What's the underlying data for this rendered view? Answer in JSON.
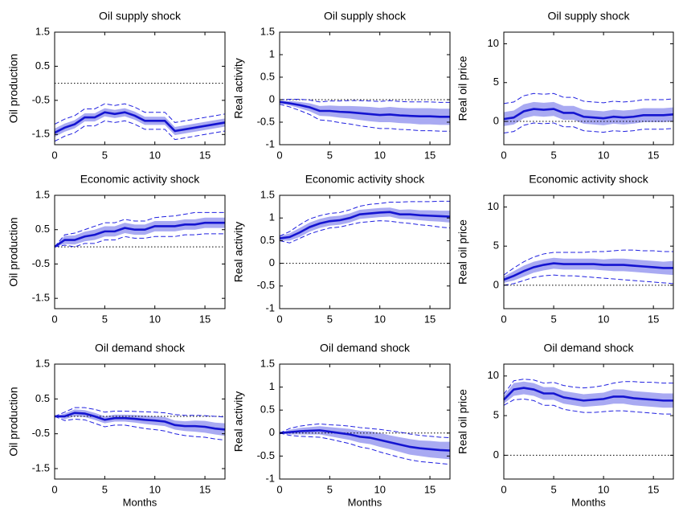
{
  "chart_data": [
    {
      "type": "line",
      "title": "Oil supply shock",
      "ylabel": "Oil production",
      "x": [
        0,
        1,
        2,
        3,
        4,
        5,
        6,
        7,
        8,
        9,
        10,
        11,
        12,
        13,
        14,
        15,
        16,
        17
      ],
      "xlim": [
        0,
        17
      ],
      "xticks": [
        0,
        5,
        10,
        15
      ],
      "ylim": [
        -1.8,
        1.5
      ],
      "yticks": [
        -1.5,
        -0.5,
        0.5,
        1.5
      ],
      "hline": 0,
      "color": "#1414d0",
      "band_color": "#a9aaf2",
      "ci_color": "#2020e0",
      "values": [
        -1.45,
        -1.3,
        -1.2,
        -1.0,
        -1.0,
        -0.85,
        -0.9,
        -0.85,
        -0.95,
        -1.1,
        -1.1,
        -1.1,
        -1.4,
        -1.35,
        -1.3,
        -1.25,
        -1.2,
        -1.15
      ],
      "band_lower": [
        -1.57,
        -1.42,
        -1.32,
        -1.12,
        -1.12,
        -0.97,
        -1.02,
        -0.97,
        -1.07,
        -1.22,
        -1.22,
        -1.22,
        -1.52,
        -1.47,
        -1.42,
        -1.37,
        -1.32,
        -1.27
      ],
      "band_upper": [
        -1.33,
        -1.18,
        -1.08,
        -0.88,
        -0.88,
        -0.73,
        -0.78,
        -0.73,
        -0.83,
        -0.98,
        -0.98,
        -0.98,
        -1.28,
        -1.23,
        -1.18,
        -1.13,
        -1.08,
        -1.03
      ],
      "ci_lower": [
        -1.7,
        -1.55,
        -1.45,
        -1.25,
        -1.25,
        -1.1,
        -1.15,
        -1.1,
        -1.2,
        -1.35,
        -1.35,
        -1.35,
        -1.65,
        -1.6,
        -1.55,
        -1.5,
        -1.45,
        -1.4
      ],
      "ci_upper": [
        -1.2,
        -1.05,
        -0.95,
        -0.75,
        -0.75,
        -0.6,
        -0.65,
        -0.6,
        -0.7,
        -0.85,
        -0.85,
        -0.85,
        -1.15,
        -1.1,
        -1.05,
        -1.0,
        -0.95,
        -0.9
      ]
    },
    {
      "type": "line",
      "title": "Oil supply shock",
      "ylabel": "Real activity",
      "x": [
        0,
        1,
        2,
        3,
        4,
        5,
        6,
        7,
        8,
        9,
        10,
        11,
        12,
        13,
        14,
        15,
        16,
        17
      ],
      "xlim": [
        0,
        17
      ],
      "xticks": [
        0,
        5,
        10,
        15
      ],
      "ylim": [
        -1,
        1.5
      ],
      "yticks": [
        -1,
        -0.5,
        0,
        0.5,
        1,
        1.5
      ],
      "hline": 0,
      "color": "#1414d0",
      "band_color": "#a9aaf2",
      "ci_color": "#2020e0",
      "values": [
        -0.05,
        -0.08,
        -0.12,
        -0.17,
        -0.25,
        -0.25,
        -0.27,
        -0.28,
        -0.3,
        -0.32,
        -0.34,
        -0.33,
        -0.35,
        -0.36,
        -0.37,
        -0.37,
        -0.38,
        -0.38
      ],
      "band_lower": [
        -0.08,
        -0.13,
        -0.19,
        -0.26,
        -0.36,
        -0.37,
        -0.4,
        -0.42,
        -0.45,
        -0.48,
        -0.5,
        -0.5,
        -0.52,
        -0.53,
        -0.55,
        -0.55,
        -0.56,
        -0.56
      ],
      "band_upper": [
        -0.02,
        -0.03,
        -0.05,
        -0.08,
        -0.14,
        -0.13,
        -0.14,
        -0.14,
        -0.15,
        -0.16,
        -0.18,
        -0.16,
        -0.18,
        -0.19,
        -0.19,
        -0.19,
        -0.2,
        -0.2
      ],
      "ci_lower": [
        -0.1,
        -0.16,
        -0.24,
        -0.33,
        -0.45,
        -0.47,
        -0.51,
        -0.54,
        -0.58,
        -0.61,
        -0.64,
        -0.64,
        -0.66,
        -0.67,
        -0.69,
        -0.69,
        -0.7,
        -0.7
      ],
      "ci_upper": [
        0,
        0.01,
        0.01,
        -0.01,
        -0.05,
        -0.03,
        -0.03,
        -0.02,
        -0.02,
        -0.03,
        -0.04,
        -0.02,
        -0.04,
        -0.05,
        -0.05,
        -0.05,
        -0.06,
        -0.06
      ]
    },
    {
      "type": "line",
      "title": "Oil supply shock",
      "ylabel": "Real oil price",
      "x": [
        0,
        1,
        2,
        3,
        4,
        5,
        6,
        7,
        8,
        9,
        10,
        11,
        12,
        13,
        14,
        15,
        16,
        17
      ],
      "xlim": [
        0,
        17
      ],
      "xticks": [
        0,
        5,
        10,
        15
      ],
      "ylim": [
        -3,
        11.5
      ],
      "yticks": [
        0,
        5,
        10
      ],
      "hline": 0,
      "color": "#1414d0",
      "band_color": "#a9aaf2",
      "ci_color": "#2020e0",
      "values": [
        0.3,
        0.5,
        1.3,
        1.6,
        1.5,
        1.6,
        1.1,
        1.1,
        0.6,
        0.5,
        0.4,
        0.6,
        0.5,
        0.6,
        0.8,
        0.8,
        0.8,
        0.9
      ],
      "band_lower": [
        -0.6,
        -0.4,
        0.4,
        0.7,
        0.6,
        0.7,
        0.2,
        0.2,
        -0.3,
        -0.4,
        -0.5,
        -0.3,
        -0.4,
        -0.3,
        -0.1,
        -0.1,
        -0.1,
        0
      ],
      "band_upper": [
        1.2,
        1.4,
        2.2,
        2.5,
        2.4,
        2.5,
        2.0,
        2.0,
        1.5,
        1.4,
        1.3,
        1.5,
        1.4,
        1.5,
        1.7,
        1.7,
        1.7,
        1.8
      ],
      "ci_lower": [
        -1.5,
        -1.3,
        -0.5,
        -0.2,
        -0.3,
        -0.2,
        -0.7,
        -0.7,
        -1.2,
        -1.3,
        -1.4,
        -1.2,
        -1.3,
        -1.2,
        -1.0,
        -1.0,
        -1.0,
        -0.9
      ],
      "ci_upper": [
        2.3,
        2.5,
        3.3,
        3.6,
        3.5,
        3.6,
        3.1,
        3.1,
        2.6,
        2.5,
        2.4,
        2.6,
        2.5,
        2.6,
        2.8,
        2.8,
        2.8,
        2.9
      ]
    },
    {
      "type": "line",
      "title": "Economic activity shock",
      "ylabel": "Oil production",
      "x": [
        0,
        1,
        2,
        3,
        4,
        5,
        6,
        7,
        8,
        9,
        10,
        11,
        12,
        13,
        14,
        15,
        16,
        17
      ],
      "xlim": [
        0,
        17
      ],
      "xticks": [
        0,
        5,
        10,
        15
      ],
      "ylim": [
        -1.8,
        1.5
      ],
      "yticks": [
        -1.5,
        -0.5,
        0.5,
        1.5
      ],
      "hline": 0,
      "color": "#1414d0",
      "band_color": "#a9aaf2",
      "ci_color": "#2020e0",
      "values": [
        0,
        0.2,
        0.2,
        0.3,
        0.35,
        0.45,
        0.45,
        0.55,
        0.5,
        0.5,
        0.6,
        0.6,
        0.6,
        0.65,
        0.65,
        0.7,
        0.7,
        0.7
      ],
      "band_lower": [
        0,
        0.08,
        0.07,
        0.16,
        0.2,
        0.3,
        0.3,
        0.4,
        0.35,
        0.35,
        0.45,
        0.45,
        0.45,
        0.5,
        0.5,
        0.55,
        0.55,
        0.55
      ],
      "band_upper": [
        0,
        0.32,
        0.33,
        0.44,
        0.5,
        0.6,
        0.6,
        0.7,
        0.65,
        0.65,
        0.75,
        0.75,
        0.75,
        0.8,
        0.8,
        0.85,
        0.85,
        0.85
      ],
      "ci_lower": [
        0,
        0.05,
        0.0,
        0.1,
        0.1,
        0.2,
        0.2,
        0.3,
        0.25,
        0.25,
        0.3,
        0.3,
        0.3,
        0.35,
        0.35,
        0.38,
        0.38,
        0.38
      ],
      "ci_upper": [
        0,
        0.35,
        0.4,
        0.5,
        0.6,
        0.7,
        0.7,
        0.8,
        0.75,
        0.75,
        0.85,
        0.88,
        0.9,
        0.95,
        1.0,
        1.0,
        1.0,
        1.0
      ]
    },
    {
      "type": "line",
      "title": "Economic activity shock",
      "ylabel": "Real activity",
      "x": [
        0,
        1,
        2,
        3,
        4,
        5,
        6,
        7,
        8,
        9,
        10,
        11,
        12,
        13,
        14,
        15,
        16,
        17
      ],
      "xlim": [
        0,
        17
      ],
      "xticks": [
        0,
        5,
        10,
        15
      ],
      "ylim": [
        -1,
        1.5
      ],
      "yticks": [
        -1,
        -0.5,
        0,
        0.5,
        1,
        1.5
      ],
      "hline": 0,
      "color": "#1414d0",
      "band_color": "#a9aaf2",
      "ci_color": "#2020e0",
      "values": [
        0.55,
        0.58,
        0.68,
        0.8,
        0.88,
        0.93,
        0.95,
        1.0,
        1.08,
        1.1,
        1.12,
        1.13,
        1.08,
        1.08,
        1.06,
        1.05,
        1.04,
        1.03
      ],
      "band_lower": [
        0.5,
        0.5,
        0.58,
        0.7,
        0.78,
        0.83,
        0.85,
        0.9,
        0.98,
        1.0,
        1.02,
        1.03,
        0.98,
        0.97,
        0.95,
        0.93,
        0.92,
        0.9
      ],
      "band_upper": [
        0.6,
        0.66,
        0.78,
        0.9,
        0.98,
        1.03,
        1.05,
        1.1,
        1.18,
        1.2,
        1.22,
        1.23,
        1.18,
        1.19,
        1.17,
        1.17,
        1.16,
        1.16
      ],
      "ci_lower": [
        0.5,
        0.45,
        0.55,
        0.65,
        0.72,
        0.78,
        0.8,
        0.85,
        0.9,
        0.92,
        0.94,
        0.93,
        0.9,
        0.88,
        0.85,
        0.83,
        0.8,
        0.78
      ],
      "ci_upper": [
        0.6,
        0.7,
        0.85,
        0.98,
        1.05,
        1.1,
        1.12,
        1.18,
        1.26,
        1.3,
        1.32,
        1.35,
        1.35,
        1.36,
        1.36,
        1.36,
        1.37,
        1.37
      ]
    },
    {
      "type": "line",
      "title": "Economic activity shock",
      "ylabel": "Real oil price",
      "x": [
        0,
        1,
        2,
        3,
        4,
        5,
        6,
        7,
        8,
        9,
        10,
        11,
        12,
        13,
        14,
        15,
        16,
        17
      ],
      "xlim": [
        0,
        17
      ],
      "xticks": [
        0,
        5,
        10,
        15
      ],
      "ylim": [
        -3,
        11.5
      ],
      "yticks": [
        0,
        5,
        10
      ],
      "hline": 0,
      "color": "#1414d0",
      "band_color": "#a9aaf2",
      "ci_color": "#2020e0",
      "values": [
        0.7,
        1.2,
        1.8,
        2.3,
        2.6,
        2.8,
        2.7,
        2.7,
        2.7,
        2.7,
        2.6,
        2.6,
        2.6,
        2.5,
        2.4,
        2.3,
        2.2,
        2.2
      ],
      "band_lower": [
        0.3,
        0.6,
        1.1,
        1.6,
        1.9,
        2.1,
        2.0,
        2.0,
        2.0,
        2.0,
        1.9,
        1.8,
        1.8,
        1.7,
        1.6,
        1.5,
        1.4,
        1.3
      ],
      "band_upper": [
        1.1,
        1.8,
        2.5,
        3.0,
        3.3,
        3.5,
        3.4,
        3.4,
        3.4,
        3.4,
        3.3,
        3.4,
        3.4,
        3.3,
        3.2,
        3.1,
        3.0,
        3.1
      ],
      "ci_lower": [
        0,
        0.2,
        0.6,
        1.0,
        1.2,
        1.3,
        1.2,
        1.2,
        1.1,
        1.0,
        0.9,
        0.8,
        0.7,
        0.6,
        0.5,
        0.4,
        0.3,
        0.2
      ],
      "ci_upper": [
        1.3,
        2.2,
        3.0,
        3.6,
        4.0,
        4.2,
        4.2,
        4.2,
        4.2,
        4.3,
        4.3,
        4.4,
        4.5,
        4.5,
        4.4,
        4.4,
        4.3,
        4.3
      ]
    },
    {
      "type": "line",
      "title": "Oil demand shock",
      "ylabel": "Oil production",
      "xlabel": "Months",
      "x": [
        0,
        1,
        2,
        3,
        4,
        5,
        6,
        7,
        8,
        9,
        10,
        11,
        12,
        13,
        14,
        15,
        16,
        17
      ],
      "xlim": [
        0,
        17
      ],
      "xticks": [
        0,
        5,
        10,
        15
      ],
      "ylim": [
        -1.8,
        1.5
      ],
      "yticks": [
        -1.5,
        -0.5,
        0.5,
        1.5
      ],
      "hline": 0,
      "color": "#1414d0",
      "band_color": "#a9aaf2",
      "ci_color": "#2020e0",
      "values": [
        0,
        0,
        0.1,
        0.08,
        0,
        -0.1,
        -0.05,
        -0.05,
        -0.07,
        -0.1,
        -0.12,
        -0.15,
        -0.25,
        -0.28,
        -0.28,
        -0.3,
        -0.35,
        -0.38
      ],
      "band_lower": [
        0,
        -0.08,
        0,
        -0.02,
        -0.1,
        -0.2,
        -0.15,
        -0.15,
        -0.18,
        -0.22,
        -0.25,
        -0.28,
        -0.38,
        -0.42,
        -0.44,
        -0.47,
        -0.52,
        -0.56
      ],
      "band_upper": [
        0,
        0.08,
        0.2,
        0.18,
        0.1,
        0,
        0.05,
        0.05,
        0.04,
        0.02,
        0,
        -0.02,
        -0.12,
        -0.14,
        -0.12,
        -0.13,
        -0.18,
        -0.2
      ],
      "ci_lower": [
        0,
        -0.12,
        -0.08,
        -0.1,
        -0.2,
        -0.3,
        -0.25,
        -0.25,
        -0.3,
        -0.35,
        -0.38,
        -0.42,
        -0.5,
        -0.55,
        -0.58,
        -0.6,
        -0.65,
        -0.68
      ],
      "ci_upper": [
        0,
        0.12,
        0.25,
        0.25,
        0.2,
        0.12,
        0.15,
        0.15,
        0.14,
        0.13,
        0.12,
        0.1,
        0.05,
        0.03,
        0.03,
        0.02,
        0,
        -0.02
      ]
    },
    {
      "type": "line",
      "title": "Oil demand shock",
      "ylabel": "Real activity",
      "xlabel": "Months",
      "x": [
        0,
        1,
        2,
        3,
        4,
        5,
        6,
        7,
        8,
        9,
        10,
        11,
        12,
        13,
        14,
        15,
        16,
        17
      ],
      "xlim": [
        0,
        17
      ],
      "xticks": [
        0,
        5,
        10,
        15
      ],
      "ylim": [
        -1,
        1.5
      ],
      "yticks": [
        -1,
        -0.5,
        0,
        0.5,
        1,
        1.5
      ],
      "hline": 0,
      "color": "#1414d0",
      "band_color": "#a9aaf2",
      "ci_color": "#2020e0",
      "values": [
        0,
        0.02,
        0.04,
        0.05,
        0.06,
        0.03,
        0,
        -0.03,
        -0.08,
        -0.1,
        -0.15,
        -0.2,
        -0.25,
        -0.3,
        -0.33,
        -0.35,
        -0.37,
        -0.38
      ],
      "band_lower": [
        0,
        -0.03,
        -0.03,
        -0.03,
        -0.03,
        -0.07,
        -0.11,
        -0.15,
        -0.21,
        -0.24,
        -0.3,
        -0.35,
        -0.41,
        -0.47,
        -0.5,
        -0.53,
        -0.55,
        -0.57
      ],
      "band_upper": [
        0,
        0.07,
        0.11,
        0.13,
        0.15,
        0.13,
        0.11,
        0.09,
        0.05,
        0.04,
        0,
        -0.05,
        -0.09,
        -0.13,
        -0.16,
        -0.17,
        -0.19,
        -0.19
      ],
      "ci_lower": [
        0,
        -0.05,
        -0.07,
        -0.08,
        -0.09,
        -0.13,
        -0.18,
        -0.23,
        -0.3,
        -0.34,
        -0.41,
        -0.47,
        -0.53,
        -0.58,
        -0.62,
        -0.64,
        -0.66,
        -0.68
      ],
      "ci_upper": [
        0,
        0.1,
        0.15,
        0.18,
        0.2,
        0.18,
        0.17,
        0.15,
        0.12,
        0.1,
        0.08,
        0.05,
        0.02,
        -0.02,
        -0.05,
        -0.07,
        -0.09,
        -0.1
      ]
    },
    {
      "type": "line",
      "title": "Oil demand shock",
      "ylabel": "Real oil price",
      "xlabel": "Months",
      "x": [
        0,
        1,
        2,
        3,
        4,
        5,
        6,
        7,
        8,
        9,
        10,
        11,
        12,
        13,
        14,
        15,
        16,
        17
      ],
      "xlim": [
        0,
        17
      ],
      "xticks": [
        0,
        5,
        10,
        15
      ],
      "ylim": [
        -3,
        11.5
      ],
      "yticks": [
        0,
        5,
        10
      ],
      "hline": 0,
      "color": "#1414d0",
      "band_color": "#a9aaf2",
      "ci_color": "#2020e0",
      "values": [
        7,
        8.3,
        8.5,
        8.3,
        7.8,
        7.8,
        7.3,
        7.1,
        6.9,
        7.0,
        7.1,
        7.4,
        7.4,
        7.2,
        7.1,
        7.0,
        6.9,
        6.9
      ],
      "band_lower": [
        6.5,
        7.5,
        7.7,
        7.5,
        7.0,
        7.0,
        6.5,
        6.3,
        6.1,
        6.2,
        6.3,
        6.5,
        6.5,
        6.3,
        6.2,
        6.1,
        6.0,
        6.0
      ],
      "band_upper": [
        7.5,
        9.1,
        9.3,
        9.1,
        8.6,
        8.6,
        8.1,
        7.9,
        7.7,
        7.8,
        7.9,
        8.3,
        8.3,
        8.1,
        8.0,
        7.9,
        7.8,
        7.8
      ],
      "ci_lower": [
        6.3,
        7.0,
        7.1,
        6.9,
        6.3,
        6.3,
        5.8,
        5.6,
        5.4,
        5.4,
        5.5,
        5.6,
        5.6,
        5.5,
        5.4,
        5.3,
        5.2,
        5.2
      ],
      "ci_upper": [
        7.7,
        9.4,
        9.6,
        9.5,
        9.1,
        9.2,
        8.8,
        8.6,
        8.5,
        8.6,
        8.8,
        9.1,
        9.3,
        9.3,
        9.2,
        9.2,
        9.1,
        9.1
      ]
    }
  ]
}
